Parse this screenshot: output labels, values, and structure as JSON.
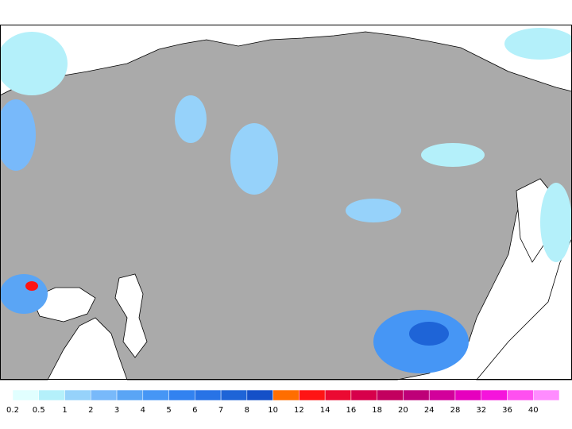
{
  "colorbar": {
    "labels": [
      "0.2",
      "0.5",
      "1",
      "2",
      "3",
      "4",
      "5",
      "6",
      "7",
      "8",
      "10",
      "12",
      "14",
      "16",
      "18",
      "20",
      "24",
      "28",
      "32",
      "36",
      "40"
    ],
    "colors": [
      "#e1ffff",
      "#b4f0fa",
      "#96d2fa",
      "#78b9fa",
      "#5aa5f5",
      "#4696f5",
      "#3282f0",
      "#2873e6",
      "#1e64d7",
      "#1450c8",
      "#ff6e00",
      "#ff1414",
      "#eb0a32",
      "#d7004b",
      "#c3005f",
      "#be0078",
      "#d2009b",
      "#e600be",
      "#f514dc",
      "#ff50f0",
      "#ff8cff"
    ]
  }
}
